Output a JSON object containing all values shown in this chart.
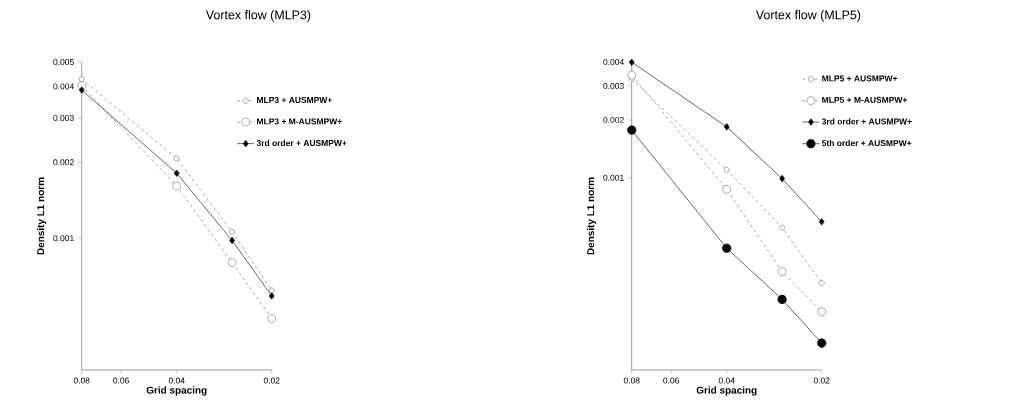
{
  "chart_data": [
    {
      "type": "line",
      "title": "Vortex flow (MLP3)",
      "xlabel": "Grid spacing",
      "ylabel": "Density L1 norm",
      "log": "xy",
      "legend": "right",
      "x": [
        0.08,
        0.04,
        0.0267,
        0.02
      ],
      "xlim": [
        0.08,
        0.02
      ],
      "xticks": [
        0.08,
        0.06,
        0.04,
        0.02
      ],
      "ylim": [
        0.0003,
        0.005
      ],
      "yticks": [
        0.001,
        0.002,
        0.003,
        0.004,
        0.005
      ],
      "series": [
        {
          "name": "MLP3 + AUSMPW+",
          "color": "#707070",
          "line_style": "dashed",
          "marker": "circle",
          "values": [
            0.00428,
            0.00207,
            0.00106,
            0.00062
          ]
        },
        {
          "name": "MLP3 + M-AUSMPW+",
          "color": "#707070",
          "line_style": "dashed",
          "marker": "circle",
          "values": [
            0.00403,
            0.00161,
            0.0008,
            0.00048
          ]
        },
        {
          "name": "3rd order + AUSMPW+",
          "color": "#000000",
          "line_style": "solid",
          "marker": "diamond",
          "values": [
            0.00387,
            0.00181,
            0.00098,
            0.00059
          ]
        }
      ]
    },
    {
      "type": "line",
      "title": "Vortex flow (MLP5)",
      "xlabel": "Grid spacing",
      "ylabel": "Density L1 norm",
      "log": "xy",
      "legend": "right",
      "x": [
        0.08,
        0.04,
        0.0267,
        0.02
      ],
      "xlim": [
        0.08,
        0.02
      ],
      "xticks": [
        0.08,
        0.06,
        0.04,
        0.02
      ],
      "ylim": [
        0.0001,
        0.004
      ],
      "yticks": [
        0.001,
        0.002,
        0.003,
        0.004
      ],
      "series": [
        {
          "name": "MLP5 + AUSMPW+",
          "color": "#707070",
          "line_style": "dashed",
          "marker": "circle",
          "values": [
            0.00326,
            0.0011,
            0.00055,
            0.000283
          ]
        },
        {
          "name": "MLP5 + M-AUSMPW+",
          "color": "#707070",
          "line_style": "dashed",
          "marker": "circle",
          "values": [
            0.00342,
            0.00087,
            0.000325,
            0.000201
          ]
        },
        {
          "name": "3rd order + AUSMPW+",
          "color": "#000000",
          "line_style": "solid",
          "marker": "diamond",
          "values": [
            0.00399,
            0.00184,
            0.00099,
            0.00059
          ]
        },
        {
          "name": "5th order + AUSMPW+",
          "color": "#000000",
          "line_style": "solid",
          "marker": "circle",
          "values": [
            0.00177,
            0.00043,
            0.000233,
            0.000138
          ]
        }
      ]
    }
  ]
}
